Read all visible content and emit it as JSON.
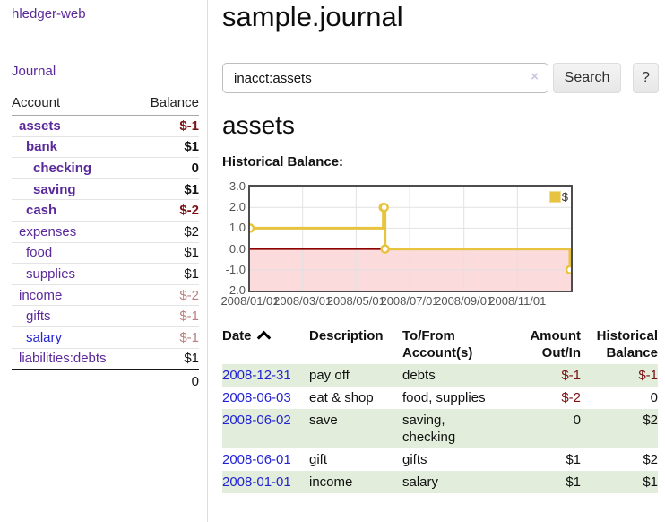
{
  "sidebar": {
    "brand": "hledger-web",
    "journal_link": "Journal",
    "accounts": {
      "header_account": "Account",
      "header_balance": "Balance",
      "rows": [
        {
          "name": "assets",
          "balance": "$-1",
          "level": 0,
          "bold": true,
          "neg": "strong",
          "link": "visited"
        },
        {
          "name": "bank",
          "balance": "$1",
          "level": 1,
          "bold": true,
          "neg": "none",
          "link": "visited"
        },
        {
          "name": "checking",
          "balance": "0",
          "level": 2,
          "bold": true,
          "neg": "none",
          "link": "visited"
        },
        {
          "name": "saving",
          "balance": "$1",
          "level": 2,
          "bold": true,
          "neg": "none",
          "link": "visited"
        },
        {
          "name": "cash",
          "balance": "$-2",
          "level": 1,
          "bold": true,
          "neg": "strong",
          "link": "visited"
        },
        {
          "name": "expenses",
          "balance": "$2",
          "level": 0,
          "bold": false,
          "neg": "none",
          "link": "visited"
        },
        {
          "name": "food",
          "balance": "$1",
          "level": 1,
          "bold": false,
          "neg": "none",
          "link": "visited"
        },
        {
          "name": "supplies",
          "balance": "$1",
          "level": 1,
          "bold": false,
          "neg": "none",
          "link": "visited"
        },
        {
          "name": "income",
          "balance": "$-2",
          "level": 0,
          "bold": false,
          "neg": "light",
          "link": "visited"
        },
        {
          "name": "gifts",
          "balance": "$-1",
          "level": 1,
          "bold": false,
          "neg": "light",
          "link": "visited"
        },
        {
          "name": "salary",
          "balance": "$-1",
          "level": 1,
          "bold": false,
          "neg": "light",
          "link": "unvisited"
        },
        {
          "name": "liabilities:debts",
          "balance": "$1",
          "level": 0,
          "bold": false,
          "neg": "none",
          "link": "visited"
        }
      ],
      "total": "0"
    }
  },
  "main": {
    "title": "sample.journal",
    "search": {
      "value": "inacct:assets",
      "clear_label": "×",
      "button_label": "Search",
      "help_label": "?"
    },
    "heading": "assets",
    "chart_label": "Historical Balance:"
  },
  "chart_data": {
    "type": "line",
    "step": true,
    "title": "Historical Balance",
    "series": [
      {
        "name": "$",
        "color": "#e8c33f",
        "points": [
          {
            "x": "2008-01-01",
            "y": 1
          },
          {
            "x": "2008-06-01",
            "y": 2
          },
          {
            "x": "2008-06-02",
            "y": 2
          },
          {
            "x": "2008-06-03",
            "y": 0
          },
          {
            "x": "2008-12-31",
            "y": -1
          }
        ]
      }
    ],
    "xlim": [
      "2008-01-01",
      "2009-01-01"
    ],
    "ylim": [
      -2,
      3
    ],
    "yticks": [
      3,
      2,
      1,
      0,
      -1,
      -2
    ],
    "xticks": [
      "2008/01/01",
      "2008/03/01",
      "2008/05/01",
      "2008/07/01",
      "2008/09/01",
      "2008/11/01"
    ],
    "grid": true,
    "legend": {
      "position": "top-right",
      "label": "$"
    },
    "colors": {
      "negative_region": "#fbdbdb",
      "zero_line": "#8d0000",
      "grid": "#e2e2e2",
      "axis_text": "#545454",
      "plot_border": "#4d4d4d"
    }
  },
  "register": {
    "headers": {
      "date": "Date",
      "description": "Description",
      "account": "To/From Account(s)",
      "amount": "Amount Out/In",
      "balance": "Historical Balance"
    },
    "rows": [
      {
        "date": "2008-12-31",
        "description": "pay off",
        "account": "debts",
        "amount": "$-1",
        "balance": "$-1",
        "amount_neg": true,
        "balance_neg": true
      },
      {
        "date": "2008-06-03",
        "description": "eat & shop",
        "account": "food, supplies",
        "amount": "$-2",
        "balance": "0",
        "amount_neg": true,
        "balance_neg": false
      },
      {
        "date": "2008-06-02",
        "description": "save",
        "account": "saving, checking",
        "amount": "0",
        "balance": "$2",
        "amount_neg": false,
        "balance_neg": false
      },
      {
        "date": "2008-06-01",
        "description": "gift",
        "account": "gifts",
        "amount": "$1",
        "balance": "$2",
        "amount_neg": false,
        "balance_neg": false
      },
      {
        "date": "2008-01-01",
        "description": "income",
        "account": "salary",
        "amount": "$1",
        "balance": "$1",
        "amount_neg": false,
        "balance_neg": false
      }
    ]
  }
}
